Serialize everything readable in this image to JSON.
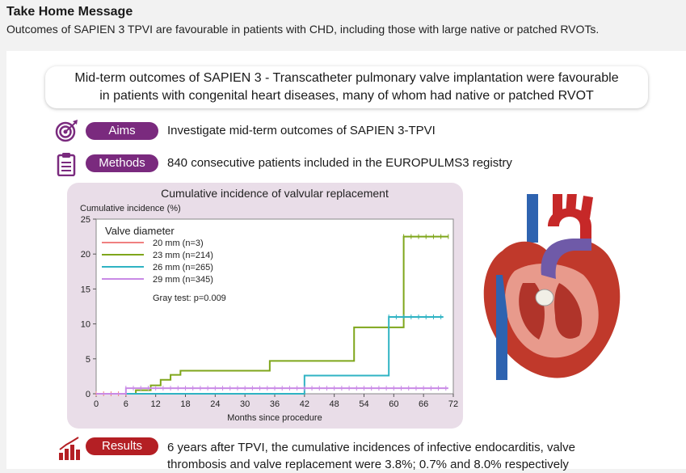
{
  "header": {
    "title": "Take Home Message",
    "subtitle": "Outcomes of SAPIEN 3 TPVI are favourable in patients with CHD, including those with large native or patched RVOTs."
  },
  "banner": {
    "line1": "Mid-term outcomes of SAPIEN 3 - Transcatheter pulmonary valve implantation were favourable",
    "line2": "in patients with congenital heart diseases, many of whom had native or patched RVOT"
  },
  "aims": {
    "label": "Aims",
    "text": "Investigate mid-term outcomes of SAPIEN 3-TPVI"
  },
  "methods": {
    "label": "Methods",
    "text": "840 consecutive patients included in the EUROPULMS3 registry"
  },
  "results": {
    "label": "Results",
    "line1": "6 years after TPVI, the cumulative incidences of infective endocarditis, valve",
    "line2": "thrombosis and valve replacement were 3.8%; 0.7% and 8.0% respectively"
  },
  "icons": {
    "aims": "target-icon",
    "methods": "clipboard-icon",
    "results": "bar-chart-icon",
    "illustration": "heart-illustration"
  },
  "colors": {
    "purple_pill": "#7a2a7e",
    "red_pill": "#b41f24",
    "chart_bg": "#e9dde8"
  },
  "chart_data": {
    "type": "line",
    "title": "Cumulative incidence of valvular replacement",
    "ylabel": "Cumulative incidence (%)",
    "xlabel": "Months since procedure",
    "xlim": [
      0,
      72
    ],
    "ylim": [
      0,
      25
    ],
    "xticks": [
      "0",
      "6",
      "12",
      "18",
      "24",
      "30",
      "36",
      "42",
      "48",
      "54",
      "60",
      "66",
      "72"
    ],
    "yticks": [
      "0",
      "5",
      "10",
      "15",
      "20",
      "25"
    ],
    "legend_title": "Valve diameter",
    "legend_position": "top-left",
    "annotation": "Gray test: p=0.009",
    "series": [
      {
        "name": "20 mm (n=3)",
        "color": "#f08080",
        "x": [
          0,
          6
        ],
        "y": [
          0,
          0
        ]
      },
      {
        "name": "23 mm (n=214)",
        "color": "#7fa61b",
        "x": [
          0,
          8,
          8,
          11,
          11,
          13,
          13,
          15,
          15,
          17,
          17,
          35,
          35,
          52,
          52,
          62,
          62,
          71
        ],
        "y": [
          0,
          0,
          0.5,
          0.5,
          1.2,
          1.2,
          2.0,
          2.0,
          2.7,
          2.7,
          3.3,
          3.3,
          4.7,
          4.7,
          9.5,
          9.5,
          22.5,
          22.5
        ]
      },
      {
        "name": "26 mm (n=265)",
        "color": "#2fb3c3",
        "x": [
          0,
          42,
          42,
          59,
          59,
          70
        ],
        "y": [
          0,
          0,
          2.6,
          2.6,
          11.0,
          11.0
        ]
      },
      {
        "name": "29 mm (n=345)",
        "color": "#c98ae6",
        "x": [
          0,
          6,
          6,
          71
        ],
        "y": [
          0,
          0,
          0.8,
          0.8
        ]
      }
    ]
  }
}
